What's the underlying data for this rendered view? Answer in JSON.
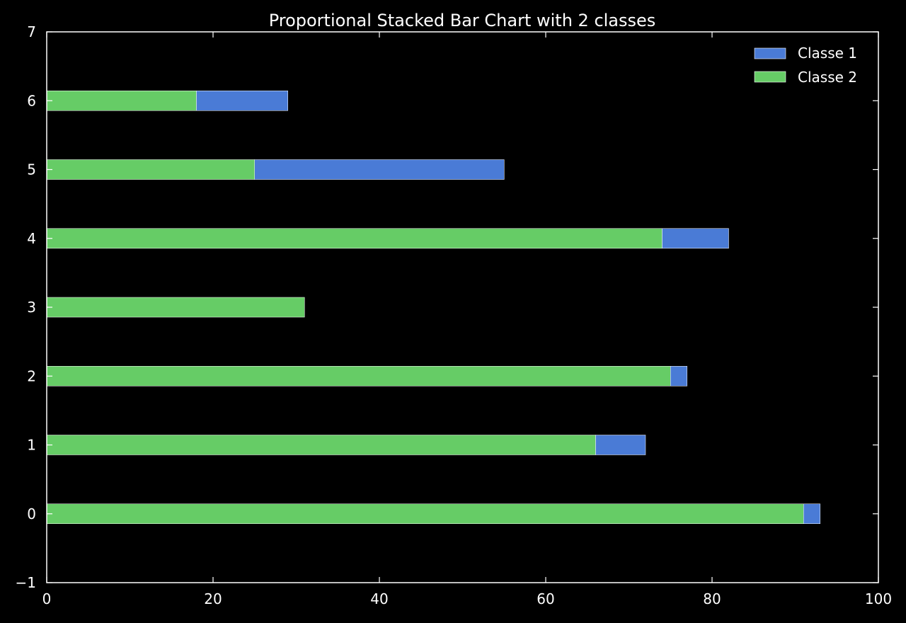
{
  "chart_data": {
    "type": "bar",
    "orientation": "horizontal",
    "stacked": true,
    "title": "Proportional Stacked Bar Chart with 2 classes",
    "xlabel": "",
    "ylabel": "",
    "xlim": [
      0,
      100
    ],
    "ylim": [
      -1,
      7
    ],
    "xticks": [
      0,
      20,
      40,
      60,
      80,
      100
    ],
    "yticks": [
      -1,
      0,
      1,
      2,
      3,
      4,
      5,
      6,
      7
    ],
    "xtick_labels": [
      "0",
      "20",
      "40",
      "60",
      "80",
      "100"
    ],
    "ytick_labels": [
      "−1",
      "0",
      "1",
      "2",
      "3",
      "4",
      "5",
      "6",
      "7"
    ],
    "categories": [
      0,
      1,
      2,
      3,
      4,
      5,
      6
    ],
    "series": [
      {
        "name": "Classe 2",
        "color": "#66cc66",
        "values": [
          91,
          66,
          75,
          31,
          74,
          25,
          18
        ]
      },
      {
        "name": "Classe 1",
        "color": "#4a7bd6",
        "values": [
          2,
          6,
          2,
          0,
          8,
          30,
          11
        ]
      }
    ],
    "legend": {
      "placement": "top-right",
      "entries": [
        {
          "name": "Classe 1",
          "color": "#4a7bd6"
        },
        {
          "name": "Classe 2",
          "color": "#66cc66"
        }
      ]
    },
    "grid": false
  }
}
